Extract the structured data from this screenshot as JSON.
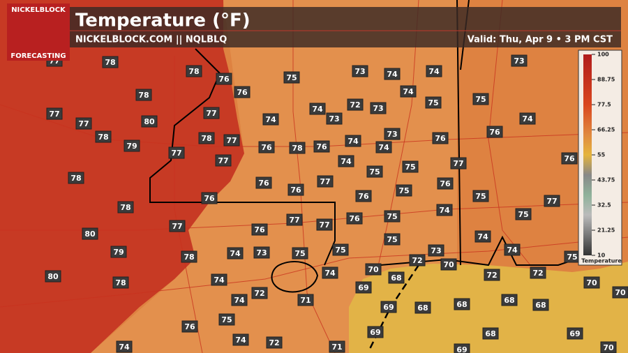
{
  "header": {
    "title": "Temperature (°F)",
    "site": "NICKELBLOCK.COM || NQLBLQ",
    "valid": "Valid: Thu, Apr 9 • 3 PM CST"
  },
  "logo": {
    "top": "NICKELBLOCK",
    "bottom": "FORECASTING"
  },
  "stations": [
    77,
    78,
    78,
    76,
    75,
    73,
    74,
    74,
    73,
    78,
    76,
    74,
    75,
    75,
    77,
    77,
    80,
    77,
    74,
    74,
    73,
    72,
    73,
    74,
    78,
    79,
    78,
    77,
    76,
    78,
    76,
    74,
    73,
    74,
    76,
    76,
    77,
    77,
    74,
    75,
    75,
    77,
    76,
    78,
    76,
    76,
    77,
    76,
    75,
    76,
    75,
    76,
    78,
    74,
    77,
    75,
    77,
    77,
    76,
    75,
    77,
    80,
    76,
    75,
    74,
    79,
    78,
    74,
    73,
    75,
    75,
    74,
    73,
    72,
    70,
    75,
    80,
    78,
    74,
    74,
    70,
    68,
    72,
    72,
    70,
    70,
    72,
    69,
    74,
    71,
    69,
    68,
    68,
    68,
    68,
    75,
    76,
    69,
    68,
    69,
    74,
    74,
    72,
    71,
    69,
    70
  ],
  "legend": {
    "title": "Temperature",
    "ticks": [
      100,
      88.75,
      77.5,
      66.25,
      55,
      43.75,
      32.5,
      21.25,
      10
    ]
  }
}
